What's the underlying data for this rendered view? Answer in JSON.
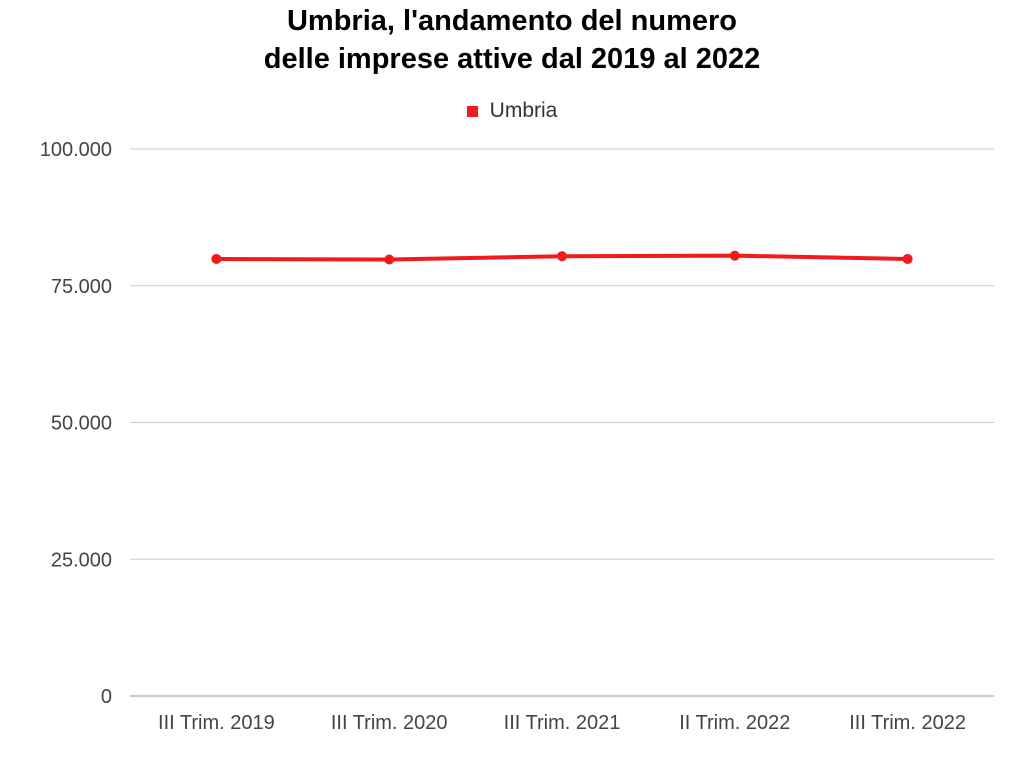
{
  "chart_data": {
    "type": "line",
    "title_lines": [
      "Umbria,  l'andamento del numero",
      "delle imprese attive dal 2019 al 2022"
    ],
    "categories": [
      "III Trim. 2019",
      "III Trim. 2020",
      "III Trim. 2021",
      "II Trim. 2022",
      "III Trim. 2022"
    ],
    "series": [
      {
        "name": "Umbria",
        "values": [
          79900,
          79800,
          80400,
          80500,
          79900
        ]
      }
    ],
    "ylim": [
      0,
      100000
    ],
    "yticks": [
      0,
      25000,
      50000,
      75000,
      100000
    ],
    "ytick_labels": [
      "0",
      "25.000",
      "50.000",
      "75.000",
      "100.000"
    ],
    "grid": true,
    "legend_position": "top-center",
    "colors": {
      "series": "#f21b1b",
      "grid": "#cccccc",
      "axis": "#999999"
    }
  }
}
